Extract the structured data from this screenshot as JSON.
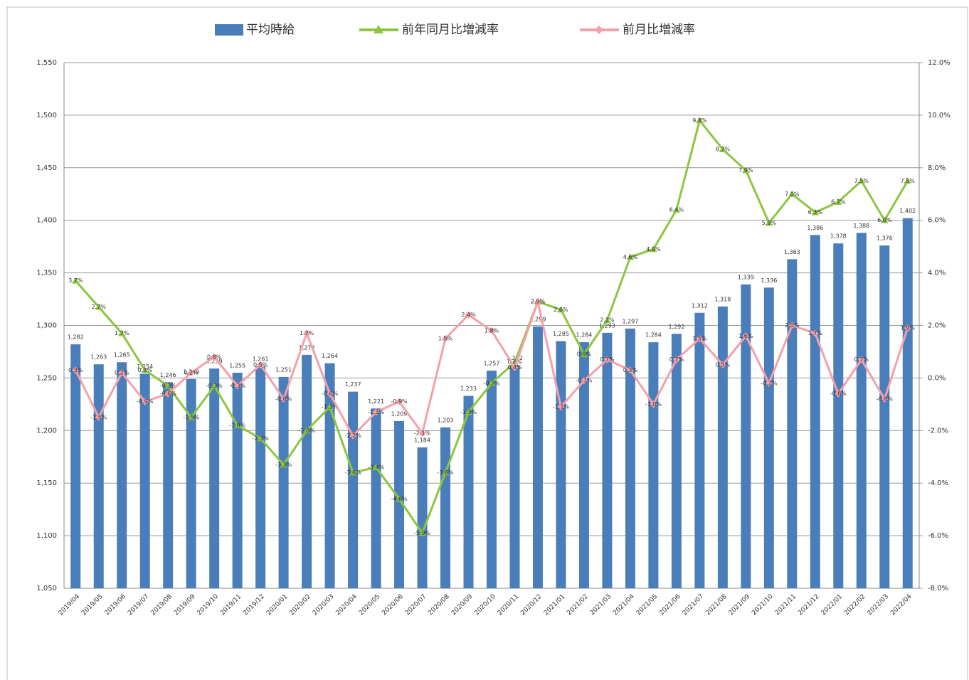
{
  "chart_data": {
    "type": "bar-line",
    "categories": [
      "2019/04",
      "2019/05",
      "2019/06",
      "2019/07",
      "2019/08",
      "2019/09",
      "2019/10",
      "2019/11",
      "2019/12",
      "2020/01",
      "2020/02",
      "2020/03",
      "2020/04",
      "2020/05",
      "2020/06",
      "2020/07",
      "2020/08",
      "2020/09",
      "2020/10",
      "2020/11",
      "2020/12",
      "2021/01",
      "2021/02",
      "2021/03",
      "2021/04",
      "2021/05",
      "2021/06",
      "2021/07",
      "2021/08",
      "2021/09",
      "2021/10",
      "2021/11",
      "2021/12",
      "2022/01",
      "2022/02",
      "2022/03",
      "2022/04"
    ],
    "series": [
      {
        "name": "平均時給",
        "type": "bar",
        "color": "#4a7ebb",
        "axis": "y",
        "values": [
          1282,
          1263,
          1265,
          1254,
          1246,
          1249,
          1259,
          1255,
          1261,
          1251,
          1272,
          1264,
          1237,
          1221,
          1209,
          1184,
          1203,
          1233,
          1257,
          1262,
          1299,
          1285,
          1284,
          1293,
          1297,
          1284,
          1292,
          1312,
          1318,
          1339,
          1336,
          1363,
          1386,
          1378,
          1388,
          1376,
          1402
        ],
        "value_labels": [
          "1,282",
          "1,263",
          "1,265",
          "1,254",
          "1,246",
          "1,249",
          "1,259",
          "1,255",
          "1,261",
          "1,251",
          "1,272",
          "1,264",
          "1,237",
          "1,221",
          "1,209",
          "1,184",
          "1,203",
          "1,233",
          "1,257",
          "1,262",
          "1,299",
          "1,285",
          "1,284",
          "1,293",
          "1,297",
          "1,284",
          "1,292",
          "1,312",
          "1,318",
          "1,339",
          "1,336",
          "1,363",
          "1,386",
          "1,378",
          "1,388",
          "1,376",
          "1,402"
        ]
      },
      {
        "name": "前年同月比増減率",
        "type": "line",
        "marker": "triangle",
        "color": "#8cc63f",
        "axis": "y2",
        "values": [
          3.7,
          2.7,
          1.7,
          0.3,
          -0.3,
          -1.5,
          -0.3,
          -1.8,
          -2.3,
          -3.3,
          -2.0,
          -1.1,
          -3.6,
          -3.4,
          -4.6,
          -5.9,
          -3.6,
          -1.3,
          -0.2,
          0.6,
          2.9,
          2.6,
          0.9,
          2.2,
          4.6,
          4.9,
          6.4,
          9.8,
          8.7,
          7.9,
          5.9,
          7.0,
          6.3,
          6.7,
          7.5,
          6.0,
          7.5
        ],
        "value_labels": [
          "3.7%",
          "2.7%",
          "1.7%",
          "0.3%",
          "-0.3%",
          "-1.5%",
          "-0.3%",
          "-1.8%",
          "-2.3%",
          "-3.3%",
          "-2.0%",
          "-1.1%",
          "-3.6%",
          "-3.4%",
          "-4.6%",
          "-5.9%",
          "-3.6%",
          "-1.3%",
          "-0.2%",
          "0.6%",
          "2.9%",
          "2.6%",
          "0.9%",
          "2.2%",
          "4.6%",
          "4.9%",
          "6.4%",
          "9.8%",
          "8.7%",
          "7.9%",
          "5.9%",
          "7.0%",
          "6.3%",
          "6.7%",
          "7.5%",
          "6.0%",
          "7.5%"
        ]
      },
      {
        "name": "前月比増減率",
        "type": "line",
        "marker": "diamond",
        "color": "#f4a0a8",
        "axis": "y2",
        "values": [
          0.3,
          -1.5,
          0.2,
          -0.9,
          -0.6,
          0.2,
          0.8,
          -0.3,
          0.5,
          -0.8,
          1.7,
          -0.6,
          -2.2,
          -1.3,
          -0.9,
          -2.1,
          1.5,
          2.4,
          1.8,
          0.4,
          2.9,
          -1.1,
          -0.1,
          0.7,
          0.3,
          -1.0,
          0.7,
          1.5,
          0.5,
          1.6,
          -0.2,
          2.0,
          1.7,
          -0.6,
          0.7,
          -0.8,
          1.9
        ],
        "value_labels": [
          "0.3%",
          "-1.5%",
          "0.2%",
          "-0.9%",
          "-0.6%",
          "0.2%",
          "0.8%",
          "-0.3%",
          "0.5%",
          "-0.8%",
          "1.7%",
          "-0.6%",
          "-2.2%",
          "-1.3%",
          "-0.9%",
          "-2.1%",
          "1.5%",
          "2.4%",
          "1.8%",
          "0.4%",
          "2.9%",
          "-1.1%",
          "-0.1%",
          "0.7%",
          "0.3%",
          "-1.0%",
          "0.7%",
          "1.5%",
          "0.5%",
          "1.6%",
          "-0.2%",
          "2.0%",
          "1.7%",
          "-0.6%",
          "0.7%",
          "-0.8%",
          "1.9%"
        ]
      }
    ],
    "ylim": [
      1050,
      1550
    ],
    "yticks": [
      {
        "value": 1050,
        "label": "1,050"
      },
      {
        "value": 1100,
        "label": "1,100"
      },
      {
        "value": 1150,
        "label": "1,150"
      },
      {
        "value": 1200,
        "label": "1,200"
      },
      {
        "value": 1250,
        "label": "1,250"
      },
      {
        "value": 1300,
        "label": "1,300"
      },
      {
        "value": 1350,
        "label": "1,350"
      },
      {
        "value": 1400,
        "label": "1,400"
      },
      {
        "value": 1450,
        "label": "1,450"
      },
      {
        "value": 1500,
        "label": "1,500"
      },
      {
        "value": 1550,
        "label": "1,550"
      }
    ],
    "y2lim": [
      -8,
      12
    ],
    "y2ticks": [
      {
        "value": -8,
        "label": "-8.0%"
      },
      {
        "value": -6,
        "label": "-6.0%"
      },
      {
        "value": -4,
        "label": "-4.0%"
      },
      {
        "value": -2,
        "label": "-2.0%"
      },
      {
        "value": 0,
        "label": "0.0%"
      },
      {
        "value": 2,
        "label": "2.0%"
      },
      {
        "value": 4,
        "label": "4.0%"
      },
      {
        "value": 6,
        "label": "6.0%"
      },
      {
        "value": 8,
        "label": "8.0%"
      },
      {
        "value": 10,
        "label": "10.0%"
      },
      {
        "value": 12,
        "label": "12.0%"
      }
    ],
    "grid": true,
    "legend": "top"
  }
}
